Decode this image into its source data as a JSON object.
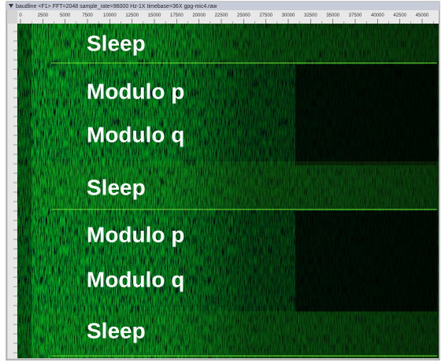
{
  "window": {
    "title": "baudline  <F1>  FFT=2048  sample_rate=96000 Hz-1X  timebase=36X  gpg-mic4.raw"
  },
  "ruler": {
    "ticks": [
      "0",
      "2500",
      "5000",
      "7500",
      "10000",
      "12500",
      "15000",
      "17500",
      "20000",
      "22500",
      "25000",
      "27500",
      "30000",
      "32500",
      "35000",
      "37500",
      "40000",
      "42500",
      "45000"
    ]
  },
  "labels": [
    "Sleep",
    "Modulo p",
    "Modulo q",
    "Sleep",
    "Modulo p",
    "Modulo q",
    "Sleep"
  ]
}
